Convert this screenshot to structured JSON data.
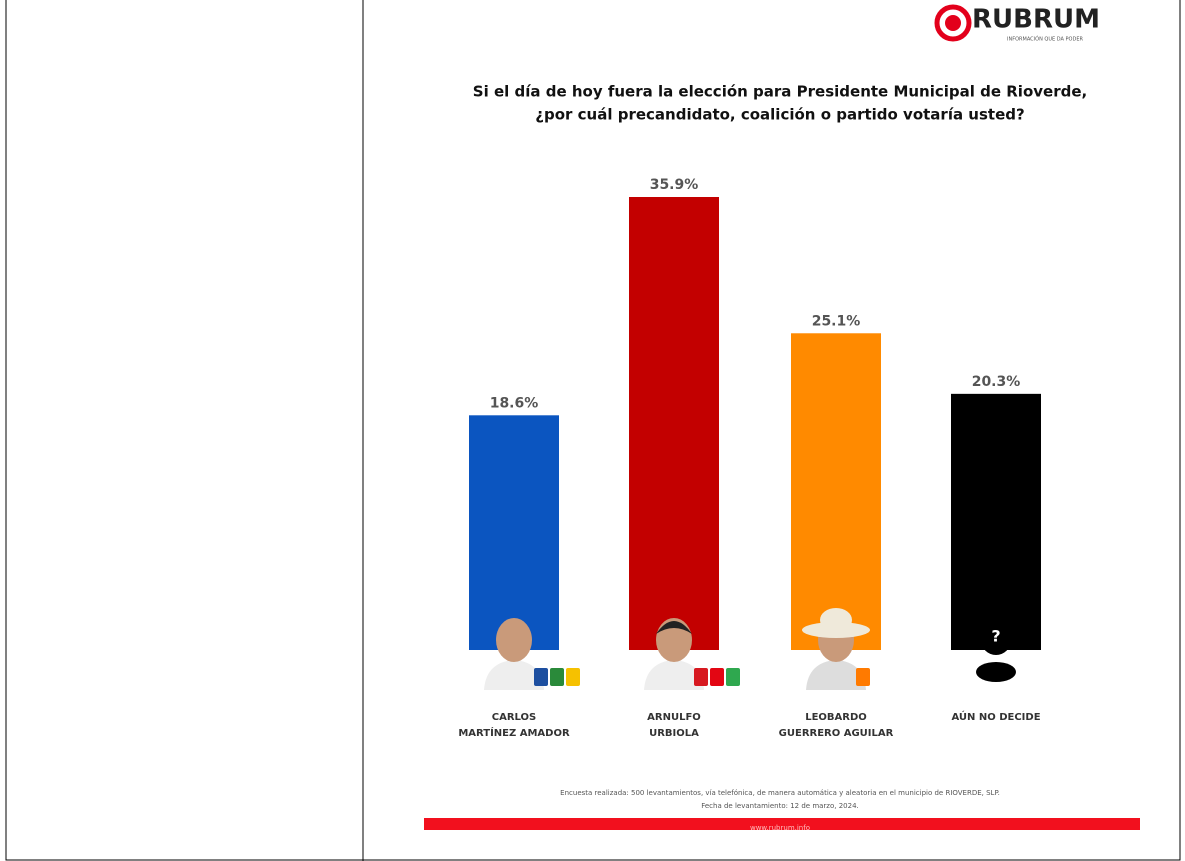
{
  "logo": {
    "name": "RUBRUM",
    "tagline": "INFORMACIÓN QUE DA PODER"
  },
  "chart_data": {
    "type": "bar",
    "title": [
      "Si el día de hoy fuera la elección para Presidente Municipal de Rioverde,",
      "¿por cuál precandidato, coalición o partido votaría usted?"
    ],
    "categories": [
      [
        "CARLOS",
        "MARTÍNEZ AMADOR"
      ],
      [
        "ARNULFO",
        "URBIOLA"
      ],
      [
        "LEOBARDO",
        "GUERRERO AGUILAR"
      ],
      [
        "AÚN NO DECIDE"
      ]
    ],
    "values": [
      18.6,
      35.9,
      25.1,
      20.3
    ],
    "value_labels": [
      "18.6%",
      "35.9%",
      "25.1%",
      "20.3%"
    ],
    "colors": [
      "#0b55c0",
      "#c30000",
      "#ff8a00",
      "#000000"
    ],
    "unknown_icon": "?"
  },
  "note": [
    "Encuesta realizada: 500 levantamientos, vía telefónica, de manera automática y aleatoria en el municipio de RIOVERDE, SLP.",
    "Fecha de levantamiento: 12 de marzo, 2024."
  ],
  "footer": "www.rubrum.info"
}
